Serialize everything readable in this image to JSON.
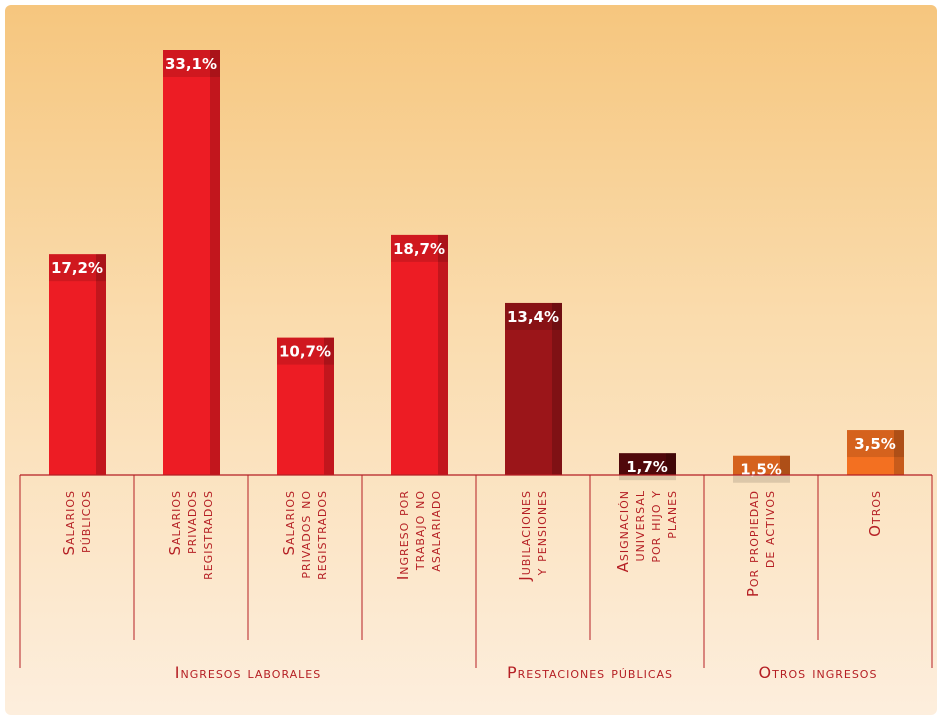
{
  "chart_data": {
    "type": "bar",
    "categories": [
      [
        "Salarios",
        "públicos"
      ],
      [
        "Salarios",
        "privados",
        "registrados"
      ],
      [
        "Salarios",
        "privados no",
        "registrados"
      ],
      [
        "Ingreso por",
        "trabajo no",
        "asalariado"
      ],
      [
        "Jubilaciones",
        "y pensiones"
      ],
      [
        "Asignación",
        "universal",
        "por hijo y",
        "planes"
      ],
      [
        "Por propiedad",
        "de activos"
      ],
      [
        "Otros"
      ]
    ],
    "values": [
      17.2,
      33.1,
      10.7,
      18.7,
      13.4,
      1.7,
      1.5,
      3.5
    ],
    "value_labels": [
      "17,2%",
      "33,1%",
      "10,7%",
      "18,7%",
      "13,4%",
      "1,7%",
      "1,5%",
      "3,5%"
    ],
    "colors": [
      "#ed1c24",
      "#ed1c24",
      "#ed1c24",
      "#ed1c24",
      "#9b1519",
      "#5c0a0d",
      "#f37021",
      "#f37021"
    ],
    "groups": [
      {
        "name": "Ingresos laborales",
        "count": 4
      },
      {
        "name": "Prestaciones públicas",
        "count": 2
      },
      {
        "name": "Otros ingresos",
        "count": 2
      }
    ]
  }
}
